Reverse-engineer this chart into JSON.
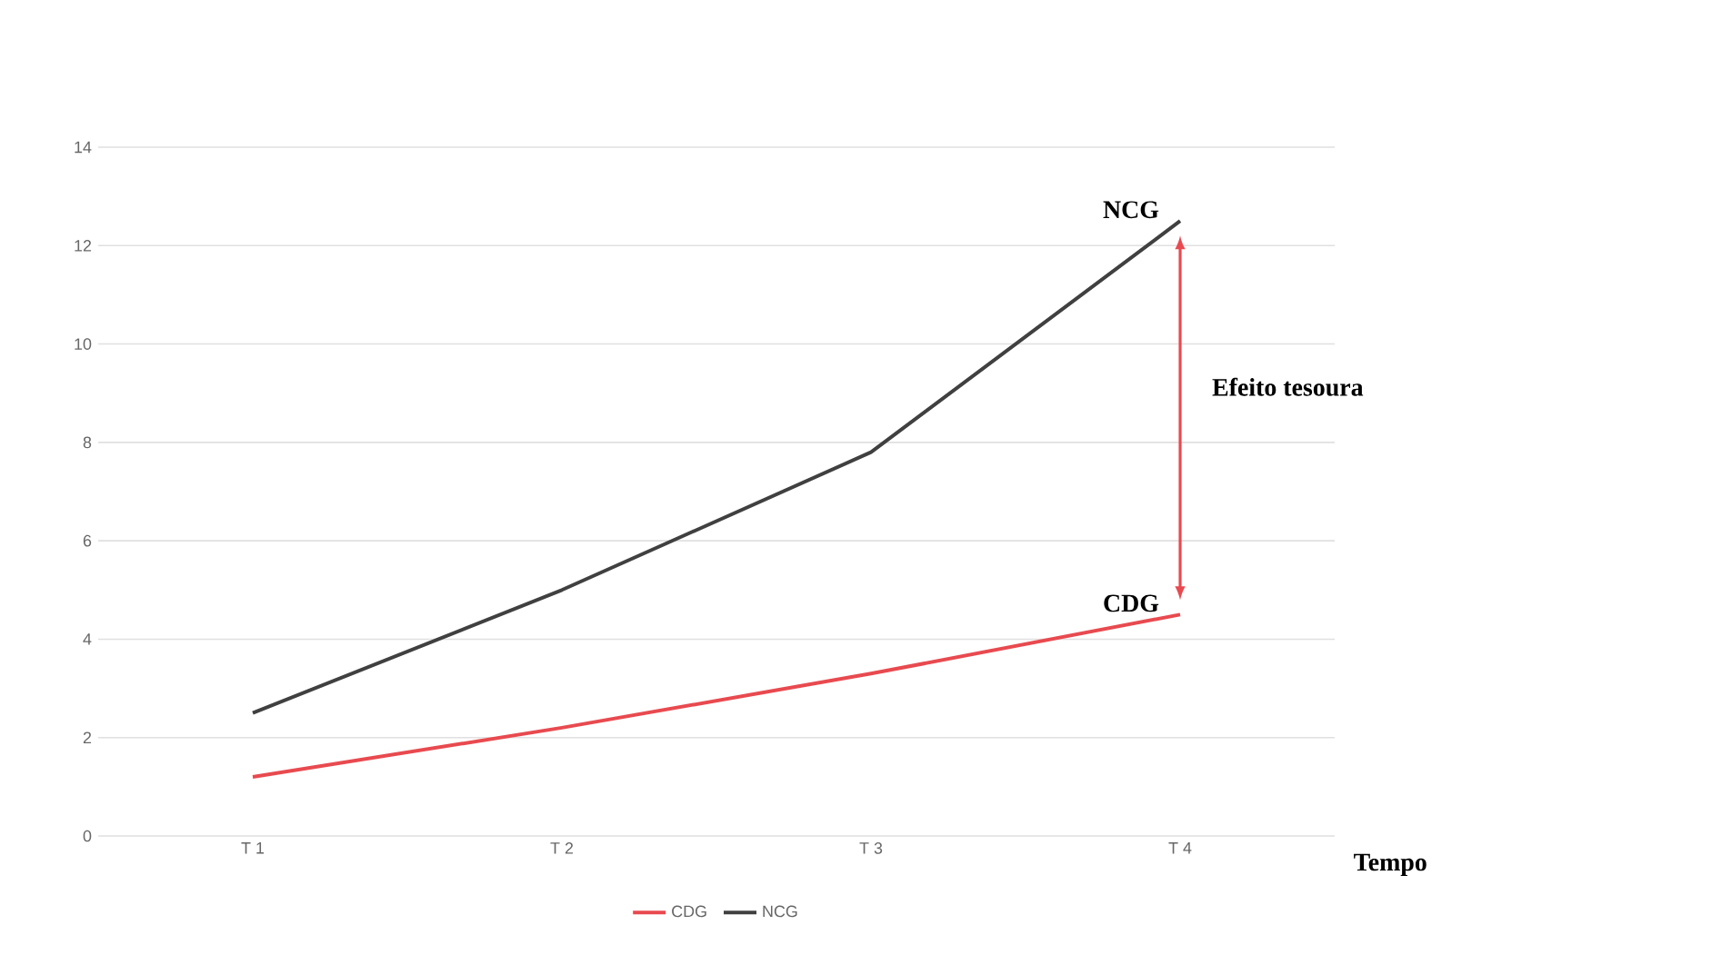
{
  "chart_data": {
    "type": "line",
    "xlabel": "Tempo",
    "categories": [
      "T 1",
      "T 2",
      "T 3",
      "T 4"
    ],
    "series": [
      {
        "name": "CDG",
        "color": "#e84a4f",
        "values": [
          1.2,
          2.2,
          3.3,
          4.5
        ]
      },
      {
        "name": "NCG",
        "color": "#404040",
        "values": [
          2.5,
          5.0,
          7.8,
          12.5
        ]
      }
    ],
    "ylim": [
      0,
      14
    ],
    "yticks": [
      0,
      2,
      4,
      6,
      8,
      10,
      12,
      14
    ],
    "grid": "y",
    "legend": "bottom",
    "annotations": [
      {
        "text": "NCG",
        "x": "T 4",
        "y": 12.5
      },
      {
        "text": "CDG",
        "x": "T 4",
        "y": 4.5
      },
      "Efeito tesoura"
    ]
  }
}
